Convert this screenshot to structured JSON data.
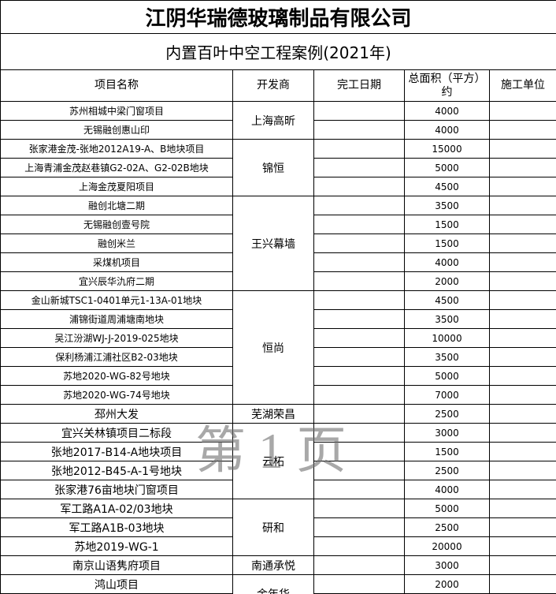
{
  "header": {
    "title": "江阴华瑞德玻璃制品有限公司",
    "subtitle": "内置百叶中空工程案例(2021年)"
  },
  "table": {
    "columns": [
      "项目名称",
      "开发商",
      "完工日期",
      "总面积（平方）约",
      "施工单位"
    ],
    "groups": [
      {
        "developer": "上海高昕",
        "projects": [
          {
            "name": "苏州相城中梁门窗项目",
            "area": 4000
          },
          {
            "name": "无锡融创惠山印",
            "area": 4000
          }
        ]
      },
      {
        "developer": "锦恒",
        "projects": [
          {
            "name": "张家港金茂-张地2012A19-A、B地块项目",
            "area": 15000
          },
          {
            "name": "上海青浦金茂赵巷镇G2-02A、G2-02B地块",
            "area": 5000
          },
          {
            "name": "上海金茂夏阳项目",
            "area": 4500
          }
        ]
      },
      {
        "developer": "王兴幕墙",
        "projects": [
          {
            "name": "融创北塘二期",
            "area": 3500
          },
          {
            "name": "无锡融创壹号院",
            "area": 1500
          },
          {
            "name": "融创米兰",
            "area": 1500
          },
          {
            "name": "采煤机项目",
            "area": 4000
          },
          {
            "name": "宜兴辰华氿府二期",
            "area": 2000
          }
        ]
      },
      {
        "developer": "恒尚",
        "projects": [
          {
            "name": "金山新城TSC1-0401单元1-13A-01地块",
            "area": 4500
          },
          {
            "name": "浦锦街道周浦塘南地块",
            "area": 3500
          },
          {
            "name": "吴江汾湖WJ-J-2019-025地块",
            "area": 10000
          },
          {
            "name": "保利杨浦江浦社区B2-03地块",
            "area": 3500
          },
          {
            "name": "苏地2020-WG-82号地块",
            "area": 5000
          },
          {
            "name": "苏地2020-WG-74号地块",
            "area": 7000
          }
        ]
      },
      {
        "developer": "芜湖荣昌",
        "projects": [
          {
            "name": "邳州大发",
            "area": 2500
          }
        ]
      },
      {
        "developer": "云柘",
        "projects": [
          {
            "name": "宜兴关林镇项目二标段",
            "area": 3000
          },
          {
            "name": "张地2017-B14-A地块项目",
            "area": 1500
          },
          {
            "name": "张地2012-B45-A-1号地块",
            "area": 2500
          },
          {
            "name": "张家港76亩地块门窗项目",
            "area": 4000
          }
        ]
      },
      {
        "developer": "研和",
        "projects": [
          {
            "name": "军工路A1A-02/03地块",
            "area": 5000
          },
          {
            "name": "军工路A1B-03地块",
            "area": 2500
          },
          {
            "name": "苏地2019-WG-1",
            "area": 20000
          }
        ]
      },
      {
        "developer": "南通承悦",
        "projects": [
          {
            "name": "南京山语隽府项目",
            "area": 3000
          }
        ]
      },
      {
        "developer": "金年华",
        "projects": [
          {
            "name": "鸿山项目",
            "area": 2000
          }
        ]
      }
    ]
  },
  "watermark": "第 1 页"
}
